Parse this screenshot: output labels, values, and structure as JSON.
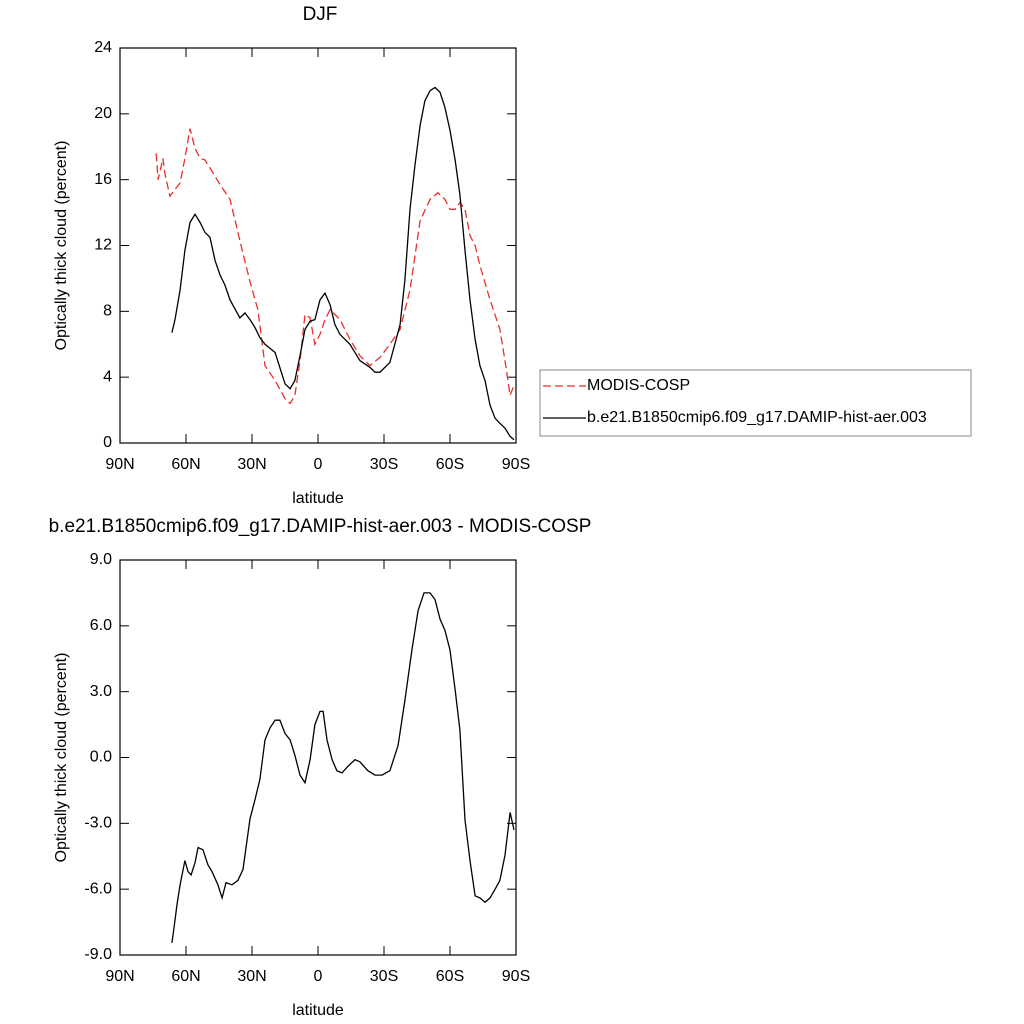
{
  "chart_data": [
    {
      "type": "line",
      "title": "DJF",
      "xlabel": "latitude",
      "ylabel": "Optically thick cloud (percent)",
      "xlim": [
        90,
        -90
      ],
      "xticks": [
        {
          "value": 90,
          "label": "90N"
        },
        {
          "value": 60,
          "label": "60N"
        },
        {
          "value": 30,
          "label": "30N"
        },
        0,
        {
          "value": -30,
          "label": "30S"
        },
        {
          "value": -60,
          "label": "60S"
        },
        {
          "value": -90,
          "label": "90S"
        }
      ],
      "ylim": [
        0,
        24
      ],
      "yticks": [
        0,
        4,
        8,
        12,
        16,
        20,
        24
      ],
      "legend": "right",
      "series": [
        {
          "name": "MODIS-COSP",
          "color": "#e8302a",
          "line_style": "dashed",
          "x": [
            73.6,
            72.7,
            71.8,
            70.5,
            69.5,
            67.3,
            65,
            62.7,
            60.5,
            58.2,
            55.9,
            53.6,
            51.4,
            49.1,
            44.5,
            40,
            35.5,
            30.9,
            27.3,
            24.1,
            19.5,
            15,
            12.7,
            10.5,
            8.2,
            5.9,
            3.6,
            1.4,
            -0.9,
            -3.2,
            -5.5,
            -10,
            -14.5,
            -19.1,
            -23.6,
            -28.2,
            -32.7,
            -37.3,
            -41.8,
            -46.4,
            -50.9,
            -54.5,
            -57.7,
            -60,
            -62.3,
            -64.5,
            -66.8,
            -69.1,
            -71.4,
            -73.6,
            -78.2,
            -82.7,
            -85,
            -87.3,
            -89.1
          ],
          "values": [
            17.6,
            16.0,
            16.5,
            17.3,
            16.3,
            15.0,
            15.4,
            15.8,
            17.3,
            19.1,
            17.9,
            17.3,
            17.2,
            16.7,
            15.7,
            14.8,
            12.3,
            9.8,
            8.1,
            4.7,
            3.8,
            2.7,
            2.4,
            2.9,
            5.0,
            7.8,
            7.6,
            6.0,
            6.6,
            7.5,
            8.1,
            7.5,
            6.3,
            5.3,
            4.7,
            5.2,
            6.0,
            6.9,
            9.3,
            13.5,
            14.8,
            15.2,
            14.8,
            14.2,
            14.2,
            14.6,
            14.2,
            12.6,
            12.0,
            10.8,
            8.7,
            6.9,
            5.0,
            2.9,
            3.5
          ]
        },
        {
          "name": "b.e21.B1850cmip6.f09_g17.DAMIP-hist-aer.003",
          "color": "#000000",
          "line_style": "solid",
          "x": [
            66.4,
            65,
            62.7,
            60.5,
            58.2,
            55.9,
            53.6,
            51.4,
            49.1,
            46.8,
            44.5,
            42.3,
            40,
            35.5,
            33.2,
            30.9,
            28.6,
            26.4,
            24.1,
            19.5,
            15,
            12.7,
            10.5,
            8.2,
            5.9,
            3.6,
            1.4,
            -0.9,
            -3.2,
            -5.5,
            -7.7,
            -10,
            -14.5,
            -19.1,
            -23.6,
            -25.9,
            -28.2,
            -32.7,
            -37.3,
            -39.5,
            -41.8,
            -44.1,
            -46.4,
            -48.6,
            -50.9,
            -53.2,
            -55.5,
            -57.7,
            -60,
            -62.3,
            -64.5,
            -66.8,
            -69.1,
            -71.4,
            -73.6,
            -75.9,
            -78.2,
            -80.5,
            -82.7,
            -85,
            -87.3,
            -89.1
          ],
          "values": [
            6.7,
            7.5,
            9.3,
            11.7,
            13.4,
            13.9,
            13.4,
            12.8,
            12.5,
            11.1,
            10.2,
            9.6,
            8.7,
            7.6,
            7.9,
            7.5,
            7.0,
            6.4,
            6.0,
            5.5,
            3.6,
            3.3,
            3.8,
            5.3,
            6.9,
            7.4,
            7.5,
            8.7,
            9.1,
            8.4,
            7.2,
            6.6,
            6.0,
            5.0,
            4.6,
            4.3,
            4.3,
            4.9,
            7.2,
            9.9,
            14.2,
            16.9,
            19.3,
            20.8,
            21.4,
            21.6,
            21.3,
            20.4,
            19.0,
            17.2,
            15.1,
            11.7,
            8.7,
            6.3,
            4.7,
            3.8,
            2.3,
            1.5,
            1.2,
            0.9,
            0.4,
            0.2
          ]
        }
      ]
    },
    {
      "type": "line",
      "title": "b.e21.B1850cmip6.f09_g17.DAMIP-hist-aer.003 - MODIS-COSP",
      "xlabel": "latitude",
      "ylabel": "Optically thick cloud (percent)",
      "xlim": [
        90,
        -90
      ],
      "xticks": [
        {
          "value": 90,
          "label": "90N"
        },
        {
          "value": 60,
          "label": "60N"
        },
        {
          "value": 30,
          "label": "30N"
        },
        0,
        {
          "value": -30,
          "label": "30S"
        },
        {
          "value": -60,
          "label": "60S"
        },
        {
          "value": -90,
          "label": "90S"
        }
      ],
      "ylim": [
        -9,
        9
      ],
      "yticks": [
        {
          "value": -9,
          "label": "-9.0"
        },
        {
          "value": -6,
          "label": "-6.0"
        },
        {
          "value": -3,
          "label": "-3.0"
        },
        {
          "value": 0,
          "label": "0.0"
        },
        {
          "value": 3,
          "label": "3.0"
        },
        {
          "value": 6,
          "label": "6.0"
        },
        {
          "value": 9,
          "label": "9.0"
        }
      ],
      "series": [
        {
          "color": "#000000",
          "line_style": "solid",
          "x": [
            66.4,
            65.5,
            64.1,
            62.7,
            60.5,
            59.1,
            57.7,
            55.9,
            54.5,
            52.3,
            50,
            48.2,
            45.5,
            43.6,
            41.8,
            39.1,
            36.4,
            34.1,
            30.9,
            28.6,
            26.4,
            24.1,
            21.8,
            19.5,
            17.3,
            15,
            12.7,
            10.5,
            8.2,
            5.9,
            3.6,
            1.4,
            -0.9,
            -2.3,
            -4.1,
            -6.4,
            -8.6,
            -10.9,
            -13.6,
            -16.8,
            -19.1,
            -22.7,
            -25.9,
            -29.1,
            -32.7,
            -36.4,
            -39.5,
            -42.7,
            -45.5,
            -48.2,
            -50.9,
            -53.2,
            -55.5,
            -57.7,
            -60,
            -62.3,
            -64.5,
            -66.8,
            -69.1,
            -71.4,
            -73.6,
            -75.9,
            -78.2,
            -80.5,
            -82.7,
            -85,
            -87.3,
            -89.1
          ],
          "values": [
            -8.45,
            -7.8,
            -6.7,
            -5.8,
            -4.7,
            -5.2,
            -5.35,
            -4.8,
            -4.1,
            -4.2,
            -4.9,
            -5.2,
            -5.8,
            -6.4,
            -5.7,
            -5.8,
            -5.6,
            -5.1,
            -2.8,
            -1.9,
            -1.0,
            0.8,
            1.35,
            1.7,
            1.7,
            1.1,
            0.8,
            0.1,
            -0.8,
            -1.15,
            -0.1,
            1.5,
            2.1,
            2.1,
            0.8,
            -0.1,
            -0.6,
            -0.7,
            -0.4,
            -0.1,
            -0.2,
            -0.6,
            -0.8,
            -0.8,
            -0.6,
            0.55,
            2.6,
            4.9,
            6.7,
            7.5,
            7.5,
            7.2,
            6.3,
            5.8,
            4.9,
            3.1,
            1.25,
            -2.85,
            -4.7,
            -6.3,
            -6.4,
            -6.6,
            -6.4,
            -6.0,
            -5.6,
            -4.45,
            -2.5,
            -3.3
          ]
        }
      ]
    }
  ]
}
